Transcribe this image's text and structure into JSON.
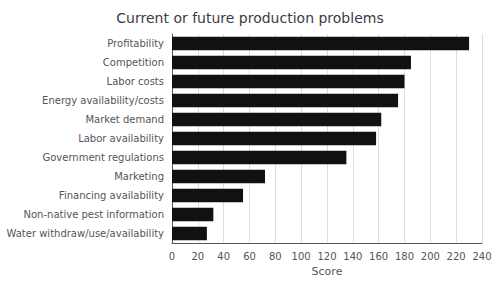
{
  "chart_data": {
    "type": "bar",
    "orientation": "horizontal",
    "title": "Current or future production problems",
    "xlabel": "Score",
    "categories": [
      "Water withdraw/use/availability",
      "Non-native pest information",
      "Financing availability",
      "Marketing",
      "Government regulations",
      "Labor availability",
      "Market demand",
      "Energy availability/costs",
      "Labor costs",
      "Competition",
      "Profitability"
    ],
    "values": [
      27,
      32,
      55,
      72,
      135,
      158,
      162,
      175,
      180,
      185,
      230
    ],
    "color": "#111111",
    "xlim": [
      0,
      240
    ],
    "xticks": [
      0,
      20,
      40,
      60,
      80,
      100,
      120,
      140,
      160,
      180,
      200,
      220,
      240
    ],
    "grid": true
  }
}
